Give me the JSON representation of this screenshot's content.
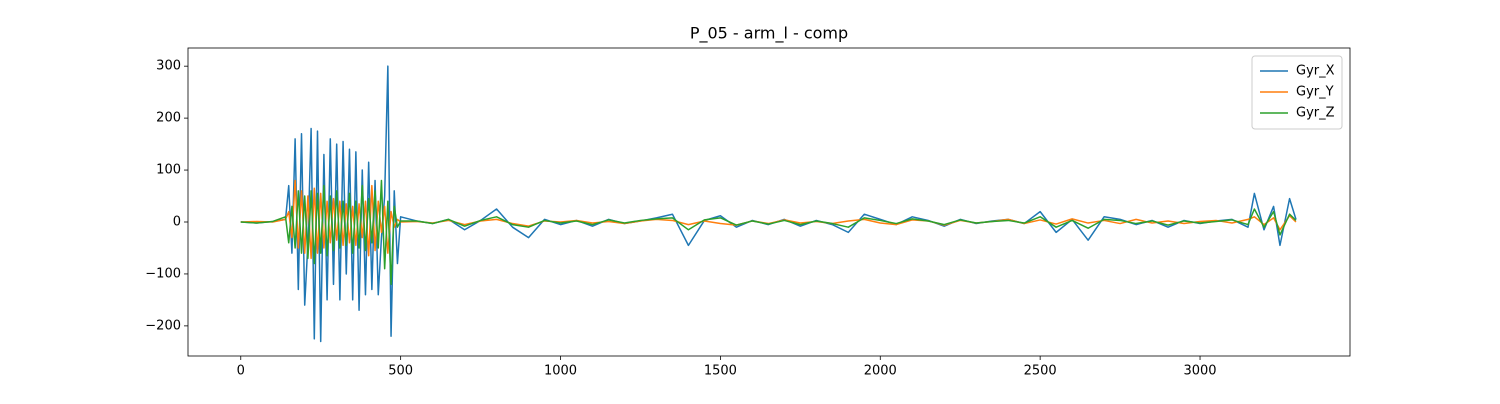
{
  "chart_data": {
    "type": "line",
    "title": "P_05 - arm_l - comp",
    "x": [
      0,
      50,
      100,
      140,
      150,
      160,
      170,
      180,
      190,
      200,
      210,
      220,
      230,
      240,
      250,
      260,
      270,
      280,
      290,
      300,
      310,
      320,
      330,
      340,
      350,
      360,
      370,
      380,
      390,
      400,
      410,
      420,
      430,
      440,
      450,
      460,
      470,
      480,
      490,
      500,
      550,
      600,
      650,
      700,
      750,
      800,
      850,
      900,
      950,
      1000,
      1050,
      1100,
      1150,
      1200,
      1250,
      1300,
      1350,
      1400,
      1450,
      1500,
      1550,
      1600,
      1650,
      1700,
      1750,
      1800,
      1850,
      1900,
      1950,
      2000,
      2050,
      2100,
      2150,
      2200,
      2250,
      2300,
      2350,
      2400,
      2450,
      2500,
      2550,
      2600,
      2650,
      2700,
      2750,
      2800,
      2850,
      2900,
      2950,
      3000,
      3050,
      3100,
      3150,
      3170,
      3200,
      3230,
      3250,
      3280,
      3300
    ],
    "series": [
      {
        "name": "Gyr_X",
        "color": "#1f77b4",
        "values": [
          0,
          -2,
          1,
          5,
          70,
          -60,
          160,
          -130,
          170,
          -160,
          -40,
          180,
          -225,
          175,
          -230,
          130,
          -150,
          160,
          -120,
          150,
          -150,
          155,
          -100,
          140,
          -150,
          135,
          -170,
          100,
          -140,
          115,
          -130,
          80,
          -140,
          -30,
          50,
          300,
          -220,
          60,
          -80,
          10,
          2,
          -3,
          5,
          -15,
          3,
          25,
          -10,
          -30,
          5,
          -5,
          3,
          -8,
          5,
          -3,
          2,
          8,
          15,
          -45,
          3,
          12,
          -10,
          3,
          -5,
          5,
          -8,
          3,
          -5,
          -20,
          15,
          5,
          -5,
          10,
          3,
          -8,
          5,
          -3,
          2,
          5,
          -3,
          20,
          -20,
          5,
          -35,
          10,
          5,
          -5,
          3,
          -10,
          3,
          -3,
          2,
          5,
          -10,
          55,
          -15,
          30,
          -45,
          45,
          5
        ]
      },
      {
        "name": "Gyr_Y",
        "color": "#ff7f0e",
        "values": [
          0,
          1,
          0,
          5,
          20,
          -30,
          80,
          -50,
          60,
          -60,
          50,
          -70,
          65,
          -60,
          55,
          -50,
          40,
          -40,
          45,
          -35,
          40,
          -45,
          35,
          -40,
          30,
          -45,
          35,
          -30,
          40,
          -65,
          70,
          -55,
          40,
          -20,
          30,
          -60,
          20,
          -10,
          5,
          0,
          1,
          -2,
          3,
          -5,
          2,
          5,
          -3,
          -8,
          2,
          0,
          3,
          -2,
          1,
          -3,
          2,
          5,
          3,
          -5,
          2,
          -3,
          -6,
          2,
          -3,
          4,
          -2,
          1,
          -3,
          2,
          5,
          -2,
          -5,
          4,
          2,
          -6,
          3,
          -2,
          1,
          5,
          -3,
          4,
          -4,
          6,
          -2,
          3,
          -3,
          5,
          -2,
          2,
          -3,
          1,
          3,
          -2,
          5,
          10,
          -5,
          8,
          -15,
          12,
          0
        ]
      },
      {
        "name": "Gyr_Z",
        "color": "#2ca02c",
        "values": [
          0,
          -2,
          1,
          10,
          -40,
          30,
          -50,
          60,
          -60,
          50,
          -70,
          60,
          -80,
          55,
          -60,
          70,
          -65,
          50,
          -55,
          60,
          -50,
          40,
          -45,
          55,
          -60,
          40,
          -50,
          70,
          -55,
          45,
          -40,
          60,
          -50,
          80,
          -90,
          40,
          -120,
          30,
          -10,
          2,
          2,
          -3,
          5,
          -8,
          3,
          10,
          -5,
          -10,
          3,
          -2,
          2,
          -5,
          4,
          -2,
          3,
          6,
          8,
          -15,
          4,
          8,
          -6,
          2,
          -4,
          3,
          -5,
          2,
          -3,
          -10,
          8,
          3,
          -3,
          6,
          2,
          -5,
          4,
          -2,
          1,
          3,
          -2,
          10,
          -10,
          3,
          -12,
          5,
          3,
          -3,
          2,
          -6,
          2,
          -2,
          1,
          4,
          -5,
          25,
          -10,
          20,
          -25,
          15,
          3
        ]
      }
    ],
    "xlim": [
      -165,
      3469
    ],
    "ylim": [
      -258,
      335
    ],
    "xticks": [
      0,
      500,
      1000,
      1500,
      2000,
      2500,
      3000
    ],
    "yticks": [
      {
        "value": -200,
        "label": "−200"
      },
      {
        "value": -100,
        "label": "−100"
      },
      0,
      100,
      200,
      300
    ],
    "legend": "upper right"
  }
}
